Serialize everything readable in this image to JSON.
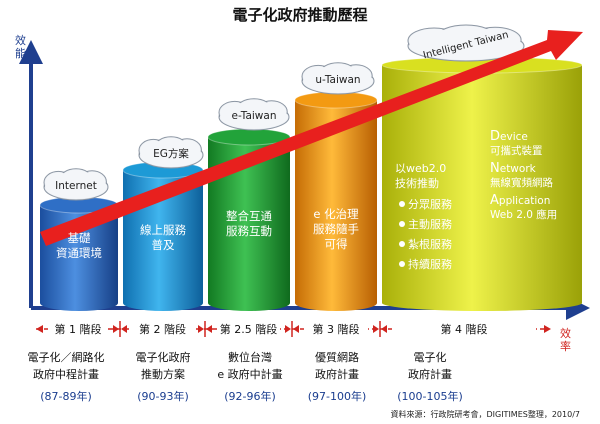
{
  "title": "電子化政府推動歷程",
  "axes": {
    "y_label": "效能",
    "x_label": "效率"
  },
  "stages": [
    {
      "label": "第 1 階段",
      "cloud": "Internet",
      "pillar_lines": [
        "基礎",
        "資通環境"
      ],
      "plan_lines": [
        "電子化／網路化",
        "政府中程計畫"
      ],
      "years": "(87-89年)",
      "color": "#2f6fc6"
    },
    {
      "label": "第 2 階段",
      "cloud": "EG方案",
      "pillar_lines": [
        "線上服務",
        "普及"
      ],
      "plan_lines": [
        "電子化政府",
        "推動方案"
      ],
      "years": "(90-93年)",
      "color": "#1d9ad6"
    },
    {
      "label": "第 2.5 階段",
      "cloud": "e-Taiwan",
      "pillar_lines": [
        "整合互通",
        "服務互動"
      ],
      "plan_lines": [
        "數位台灣",
        "e 政府中計畫"
      ],
      "years": "(92-96年)",
      "color": "#22a33a"
    },
    {
      "label": "第 3 階段",
      "cloud": "u-Taiwan",
      "pillar_lines": [
        "e 化治理",
        "服務隨手",
        "可得"
      ],
      "plan_lines": [
        "優質網路",
        "政府計畫"
      ],
      "years": "(97-100年)",
      "color": "#f39a12"
    },
    {
      "label": "第 4 階段",
      "cloud": "Intelligent Taiwan",
      "pillar_lines": [
        "以web2.0",
        "技術推動"
      ],
      "bullets": [
        "分眾服務",
        "主動服務",
        "紮根服務",
        "持續服務"
      ],
      "plan_lines": [
        "電子化",
        "政府計畫"
      ],
      "years": "(100-105年)",
      "color": "#d9e020"
    }
  ],
  "dna": [
    {
      "initial": "D",
      "rest": "evice",
      "desc": "可攜式裝置"
    },
    {
      "initial": "N",
      "rest": "etwork",
      "desc": "無線寬頻網路"
    },
    {
      "initial": "A",
      "rest": "pplication",
      "desc": "Web 2.0 應用"
    }
  ],
  "source": "資料來源：行政院研考會，DIGITIMES整理，2010/7",
  "colors": {
    "axis": "#1f3f8f",
    "arrow": "#e8201e",
    "dashed": "#d0241f",
    "title": "#111111"
  }
}
